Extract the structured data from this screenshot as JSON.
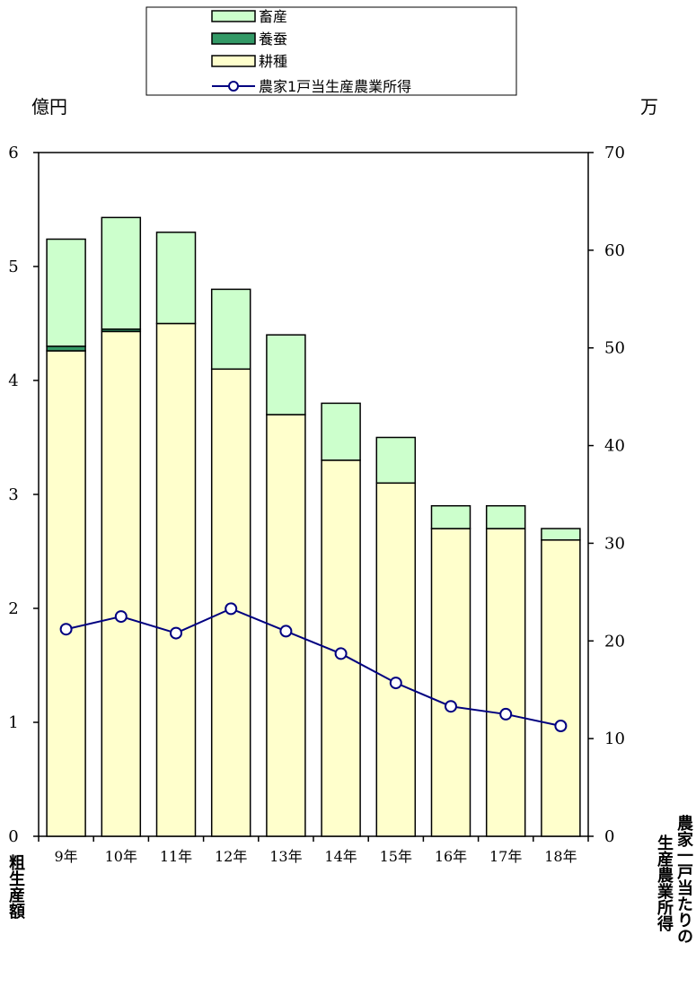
{
  "chart_data": {
    "type": "bar",
    "categories": [
      "9年",
      "10年",
      "11年",
      "12年",
      "13年",
      "14年",
      "15年",
      "16年",
      "17年",
      "18年"
    ],
    "series": [
      {
        "name": "耕種",
        "kind": "stacked-bar",
        "axis": "left",
        "color": "#FFFFCC",
        "values": [
          4.26,
          4.43,
          4.5,
          4.1,
          3.7,
          3.3,
          3.1,
          2.7,
          2.7,
          2.6
        ]
      },
      {
        "name": "養蚕",
        "kind": "stacked-bar",
        "axis": "left",
        "color": "#339966",
        "values": [
          0.04,
          0.02,
          0.0,
          0.0,
          0.0,
          0.0,
          0.0,
          0.0,
          0.0,
          0.0
        ]
      },
      {
        "name": "畜産",
        "kind": "stacked-bar",
        "axis": "left",
        "color": "#CCFFCC",
        "values": [
          0.94,
          0.98,
          0.8,
          0.7,
          0.7,
          0.5,
          0.4,
          0.2,
          0.2,
          0.1
        ]
      },
      {
        "name": "農家1戸当生産農業所得",
        "kind": "line",
        "axis": "right",
        "color": "#000080",
        "values": [
          21.2,
          22.5,
          20.8,
          23.3,
          21.0,
          18.7,
          15.7,
          13.3,
          12.5,
          11.3
        ]
      }
    ],
    "y_left": {
      "unit": "億円",
      "ylim": [
        0,
        6
      ],
      "ticks": [
        "0",
        "1",
        "2",
        "3",
        "4",
        "5",
        "6"
      ]
    },
    "y_right": {
      "unit": "万",
      "ylim": [
        0,
        70
      ],
      "ticks": [
        "0",
        "10",
        "20",
        "30",
        "40",
        "50",
        "60",
        "70"
      ]
    },
    "legend_position": "top-center",
    "grid": false,
    "left_axis_title": "粗生産額",
    "right_axis_title_line1": "農家一戸当たりの",
    "right_axis_title_line2": "生産農業所得"
  }
}
